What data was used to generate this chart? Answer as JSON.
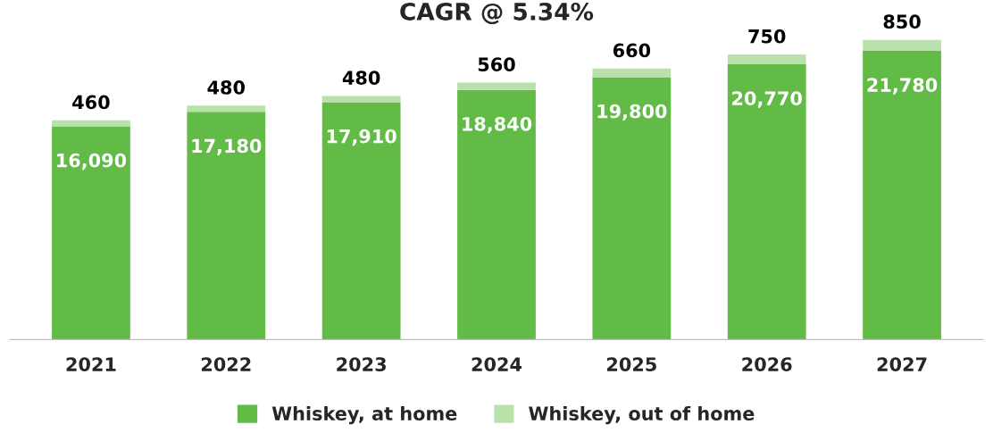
{
  "chart_data": {
    "type": "bar",
    "title": "CAGR @ 5.34%",
    "stacked": true,
    "legend": "bottom",
    "grid": false,
    "categories": [
      "2021",
      "2022",
      "2023",
      "2024",
      "2025",
      "2026",
      "2027"
    ],
    "series": [
      {
        "name": "Whiskey, at home",
        "color": "#62bb46",
        "values": [
          16090,
          17180,
          17910,
          18840,
          19800,
          20770,
          21780
        ],
        "value_labels": [
          "16,090",
          "17,180",
          "17,910",
          "18,840",
          "19,800",
          "20,770",
          "21,780"
        ]
      },
      {
        "name": "Whiskey, out of home",
        "color": "#b9e1ab",
        "values": [
          460,
          480,
          480,
          560,
          660,
          750,
          850
        ],
        "value_labels": [
          "460",
          "480",
          "480",
          "560",
          "660",
          "750",
          "850"
        ]
      }
    ]
  }
}
